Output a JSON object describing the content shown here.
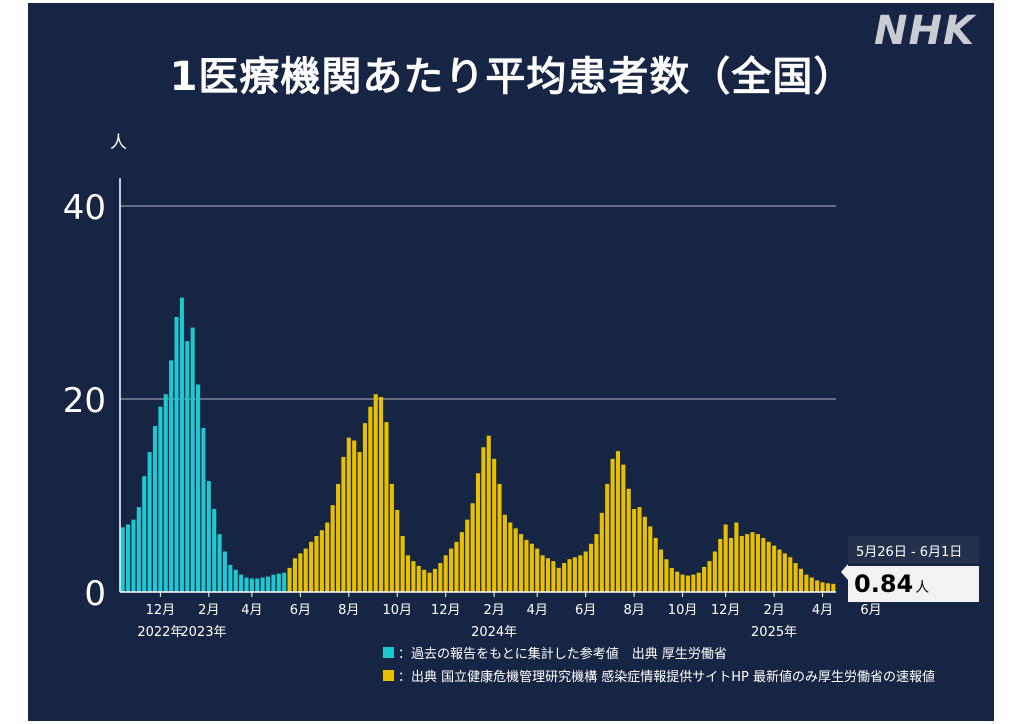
{
  "header": {
    "title": "1医療機関あたり平均患者数（全国）",
    "logo_text": "NHK"
  },
  "chart_data": {
    "type": "bar",
    "ylabel": "人",
    "ylim": [
      0,
      43
    ],
    "yticks": [
      0,
      20,
      40
    ],
    "grid": true,
    "month_ticks": [
      {
        "label": "12月",
        "week": 7
      },
      {
        "label": "2月",
        "week": 16
      },
      {
        "label": "4月",
        "week": 24
      },
      {
        "label": "6月",
        "week": 33
      },
      {
        "label": "8月",
        "week": 42
      },
      {
        "label": "10月",
        "week": 51
      },
      {
        "label": "12月",
        "week": 60
      },
      {
        "label": "2月",
        "week": 69
      },
      {
        "label": "4月",
        "week": 77
      },
      {
        "label": "6月",
        "week": 86
      },
      {
        "label": "8月",
        "week": 95
      },
      {
        "label": "10月",
        "week": 104
      },
      {
        "label": "12月",
        "week": 112
      },
      {
        "label": "2月",
        "week": 121
      },
      {
        "label": "4月",
        "week": 130
      },
      {
        "label": "6月",
        "week": 139
      }
    ],
    "year_labels": [
      {
        "label": "2022年",
        "week": 7
      },
      {
        "label": "2023年",
        "week": 15
      },
      {
        "label": "2024年",
        "week": 69
      },
      {
        "label": "2025年",
        "week": 121
      }
    ],
    "series": [
      {
        "name": "過去の報告をもとに集計した参考値",
        "color": "#1ec8d0",
        "values": [
          6.7,
          7.0,
          7.5,
          8.8,
          12.0,
          14.5,
          17.2,
          19.2,
          20.5,
          24.0,
          28.5,
          30.5,
          26.0,
          27.4,
          21.5,
          17.0,
          11.5,
          8.6,
          6.0,
          4.2,
          2.8,
          2.3,
          1.8,
          1.5,
          1.4,
          1.4,
          1.5,
          1.6,
          1.8,
          1.9,
          2.0
        ]
      },
      {
        "name": "速報値",
        "color": "#e8c000",
        "values": [
          2.5,
          3.5,
          4.0,
          4.5,
          5.2,
          5.8,
          6.4,
          7.2,
          9.0,
          11.2,
          14.0,
          16.0,
          15.7,
          14.5,
          17.5,
          19.2,
          20.5,
          20.2,
          17.6,
          11.2,
          8.5,
          5.8,
          3.8,
          3.2,
          2.7,
          2.3,
          2.0,
          2.4,
          3.0,
          3.8,
          4.5,
          5.2,
          6.2,
          7.5,
          9.2,
          12.3,
          15.0,
          16.2,
          13.8,
          11.2,
          8.0,
          7.2,
          6.6,
          6.0,
          5.4,
          5.0,
          4.5,
          3.8,
          3.5,
          3.2,
          2.5,
          3.0,
          3.4,
          3.6,
          3.8,
          4.2,
          5.0,
          6.0,
          8.2,
          11.2,
          13.8,
          14.6,
          13.2,
          10.7,
          8.6,
          8.8,
          7.8,
          6.8,
          5.6,
          4.4,
          3.4,
          2.5,
          2.1,
          1.8,
          1.7,
          1.8,
          2.0,
          2.6,
          3.2,
          4.2,
          5.5,
          7.0,
          5.6,
          7.2,
          5.8,
          6.0,
          6.2,
          6.0,
          5.6,
          5.2,
          4.8,
          4.4,
          4.0,
          3.6,
          3.0,
          2.4,
          1.8,
          1.5,
          1.2,
          1.0,
          0.9,
          0.84
        ]
      }
    ]
  },
  "legend": [
    {
      "color": "#1ec8d0",
      "text": "：過去の報告をもとに集計した参考値　出典 厚生労働省"
    },
    {
      "color": "#e8c000",
      "text": "：出典 国立健康危機管理研究機構 感染症情報提供サイトHP 最新値のみ厚生労働省の速報値"
    }
  ],
  "callout": {
    "date": "5月26日 - 6月1日",
    "value": "0.84",
    "suffix": "人"
  }
}
